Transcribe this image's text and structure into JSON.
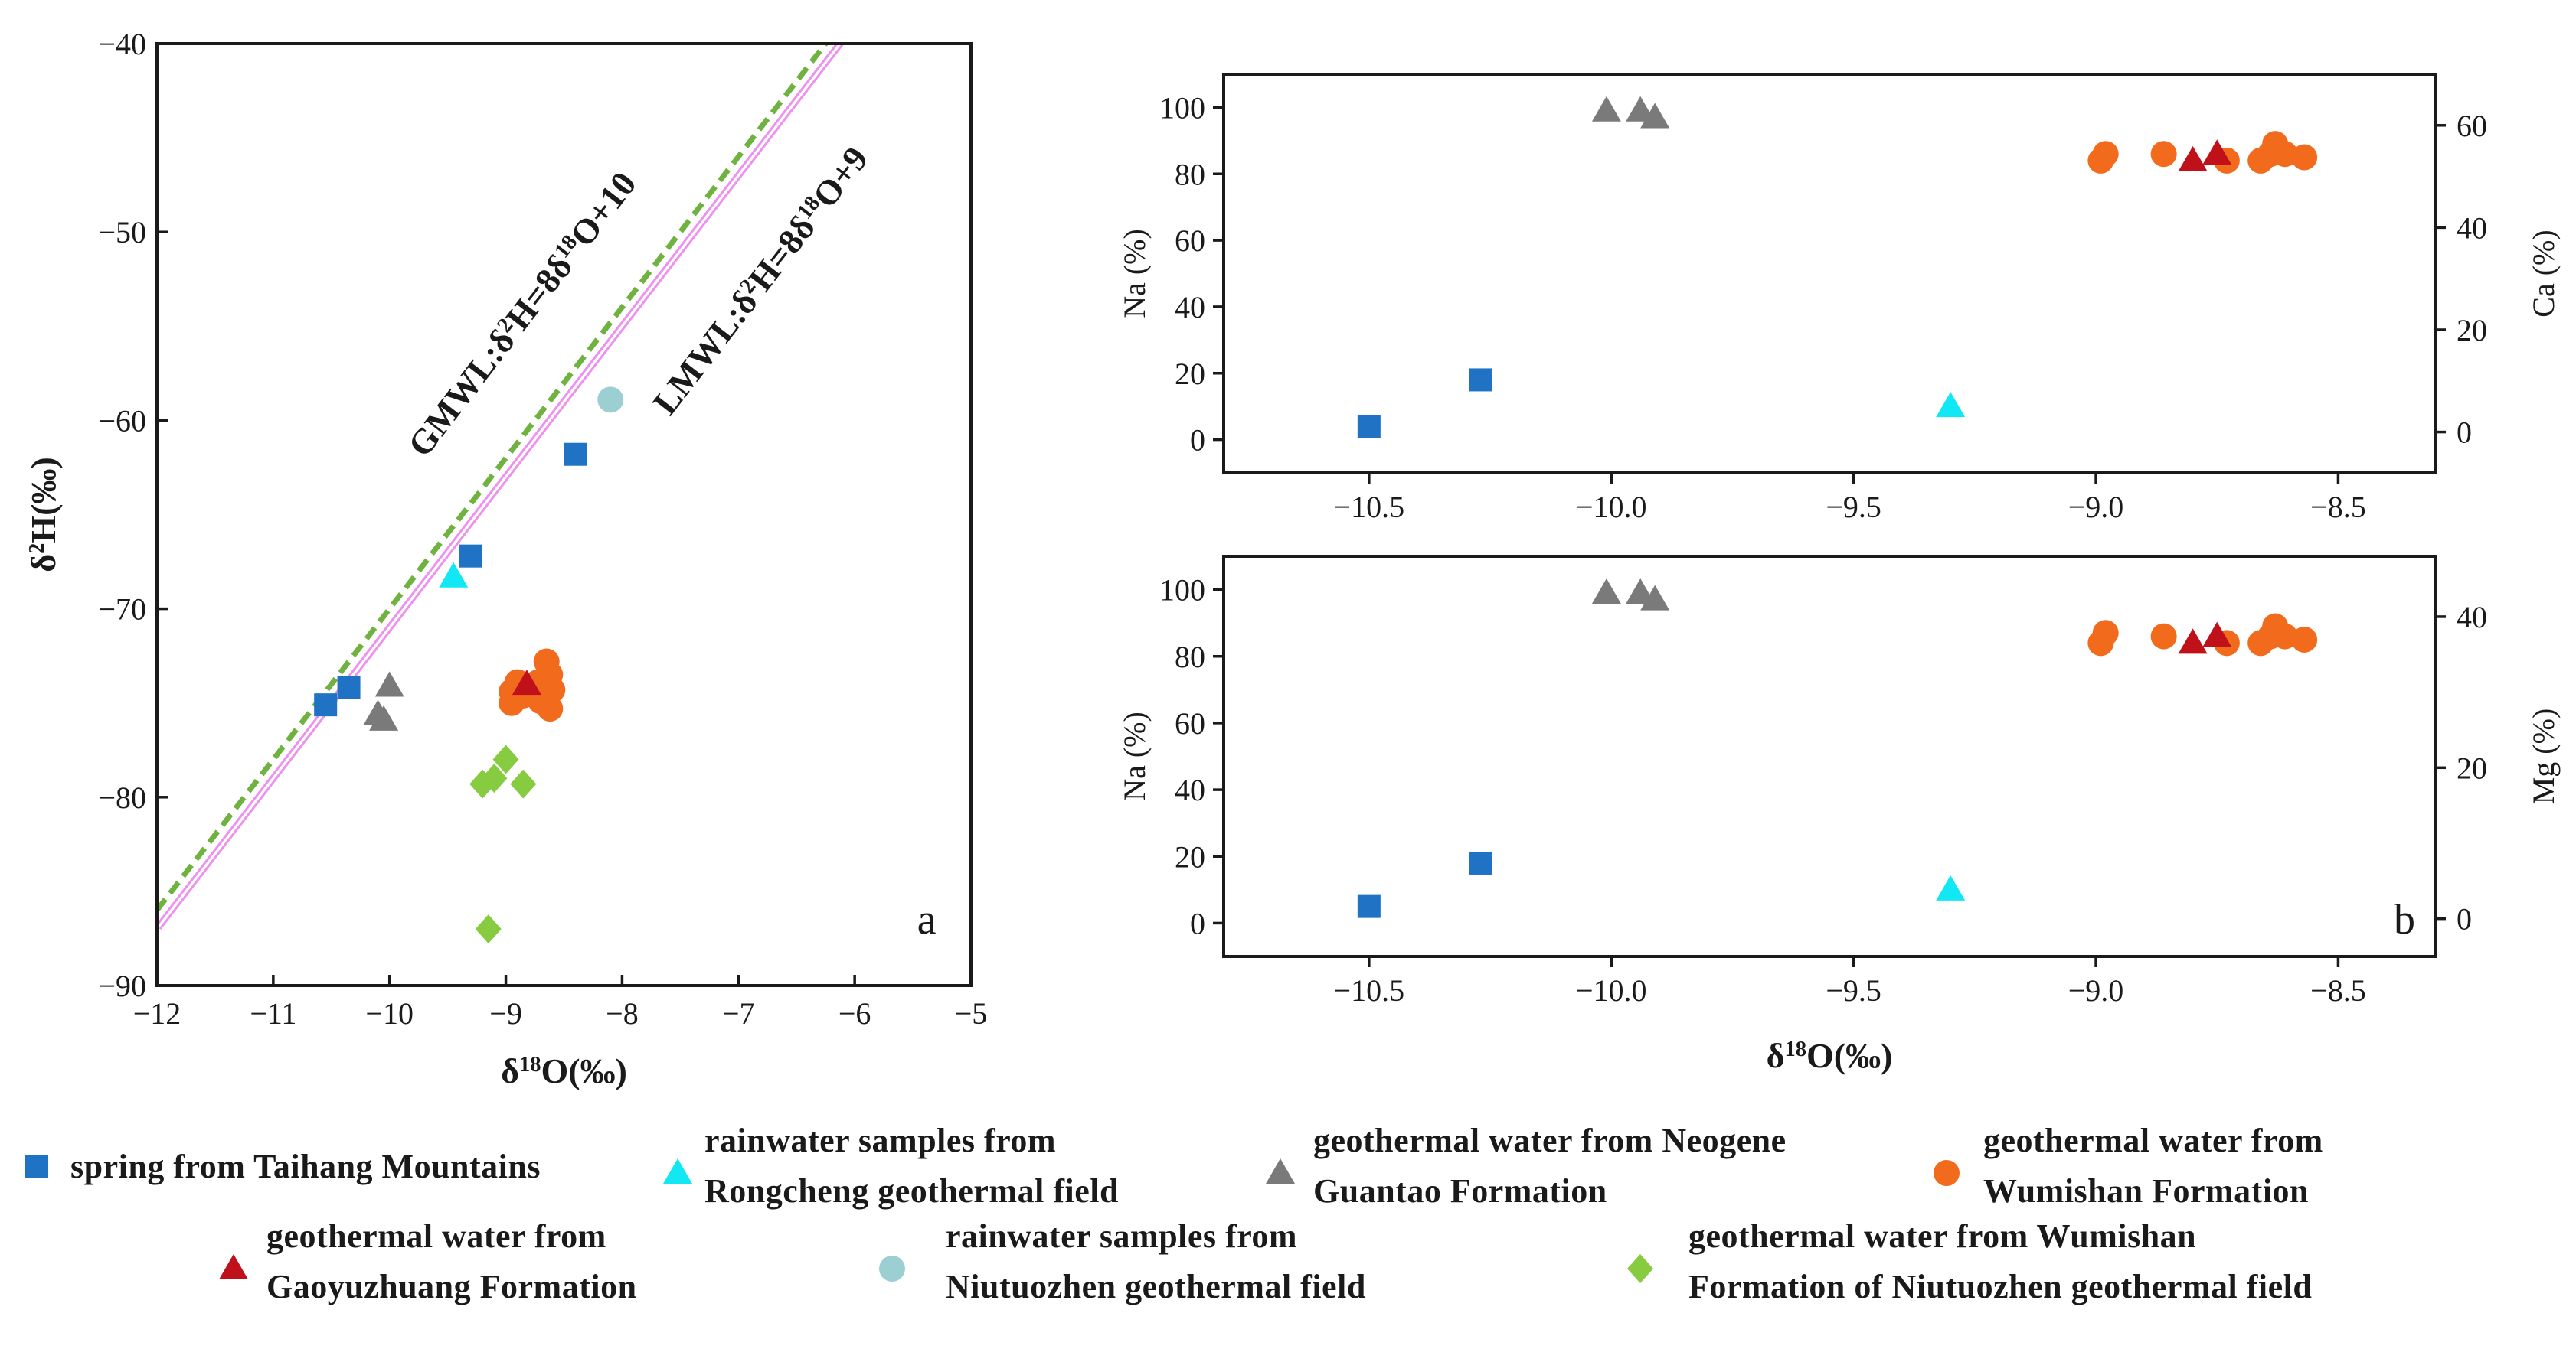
{
  "colors": {
    "spring": "#1f72c4",
    "rain_rongcheng": "#12e8f4",
    "guantao": "#7a7a7a",
    "wumishan": "#f26b1d",
    "gaoyuzhuang": "#c0111a",
    "rain_niutuozhen": "#9ccfd2",
    "niutuozhen_wumishan": "#86cb40",
    "gmwl": "#6fb23f",
    "lmwl": "#ef8ff0"
  },
  "legend": [
    {
      "key": "spring",
      "shape": "square",
      "lines": [
        "spring from Taihang Mountains"
      ]
    },
    {
      "key": "rain_rongcheng",
      "shape": "triangle",
      "lines": [
        "rainwater samples from",
        "Rongcheng geothermal field"
      ]
    },
    {
      "key": "guantao",
      "shape": "triangle",
      "lines": [
        "geothermal water from Neogene",
        "Guantao Formation"
      ]
    },
    {
      "key": "wumishan",
      "shape": "circle",
      "lines": [
        "geothermal water from",
        "Wumishan Formation"
      ]
    },
    {
      "key": "gaoyuzhuang",
      "shape": "triangle",
      "lines": [
        "geothermal water from",
        "Gaoyuzhuang Formation"
      ]
    },
    {
      "key": "rain_niutuozhen",
      "shape": "circle",
      "lines": [
        "rainwater samples from",
        "Niutuozhen geothermal field"
      ]
    },
    {
      "key": "niutuozhen_wumishan",
      "shape": "diamond",
      "lines": [
        "geothermal water from Wumishan",
        "Formation of Niutuozhen geothermal field"
      ]
    }
  ],
  "chart_data": [
    {
      "id": "a",
      "type": "scatter",
      "panel_label": "a",
      "xlabel": "δ¹⁸O(‰)",
      "ylabel": "δ²H(‰)",
      "xlim": [
        -12,
        -5
      ],
      "ylim": [
        -90,
        -40
      ],
      "xticks": [
        -12,
        -11,
        -10,
        -9,
        -8,
        -7,
        -6,
        -5
      ],
      "yticks": [
        -90,
        -80,
        -70,
        -60,
        -50,
        -40
      ],
      "lines": [
        {
          "key": "gmwl",
          "name": "GMWL",
          "label": "GMWL:δ²H=8δ¹⁸O+10",
          "slope": 8,
          "intercept": 10,
          "dash": true
        },
        {
          "key": "lmwl",
          "name": "LMWL",
          "label": "LMWL:δ²H=8δ¹⁸O+9",
          "slope": 8,
          "intercept": 9,
          "dash": false
        }
      ],
      "series": [
        {
          "key": "spring",
          "points": [
            [
              -10.55,
              -75.1
            ],
            [
              -10.35,
              -74.2
            ],
            [
              -9.3,
              -67.2
            ],
            [
              -8.4,
              -61.8
            ]
          ]
        },
        {
          "key": "rain_rongcheng",
          "points": [
            [
              -9.45,
              -68.3
            ]
          ]
        },
        {
          "key": "guantao",
          "points": [
            [
              -10.0,
              -74.1
            ],
            [
              -10.1,
              -75.6
            ],
            [
              -10.05,
              -75.9
            ]
          ]
        },
        {
          "key": "wumishan",
          "points": [
            [
              -8.95,
              -74.4
            ],
            [
              -8.9,
              -73.9
            ],
            [
              -8.85,
              -74.6
            ],
            [
              -8.75,
              -74.0
            ],
            [
              -8.7,
              -74.9
            ],
            [
              -8.65,
              -72.8
            ],
            [
              -8.62,
              -73.5
            ],
            [
              -8.6,
              -74.3
            ],
            [
              -8.95,
              -75.0
            ],
            [
              -8.62,
              -75.3
            ],
            [
              -8.72,
              -73.9
            ]
          ]
        },
        {
          "key": "gaoyuzhuang",
          "points": [
            [
              -8.82,
              -74.0
            ]
          ]
        },
        {
          "key": "rain_niutuozhen",
          "points": [
            [
              -8.1,
              -58.9
            ]
          ]
        },
        {
          "key": "niutuozhen_wumishan",
          "points": [
            [
              -9.2,
              -79.3
            ],
            [
              -9.1,
              -79.0
            ],
            [
              -9.0,
              -78.0
            ],
            [
              -8.85,
              -79.3
            ],
            [
              -9.15,
              -87.0
            ]
          ]
        }
      ]
    },
    {
      "id": "b_top",
      "type": "scatter",
      "xlim": [
        -10.8,
        -8.3
      ],
      "xticks": [
        -10.5,
        -10.0,
        -9.5,
        -9.0,
        -8.5
      ],
      "xticklabels": [
        "−10.5",
        "−10.0",
        "−9.5",
        "−9.0",
        "−8.5"
      ],
      "ylabel_left": "Na (%)",
      "ylim_left": [
        -10,
        110
      ],
      "yticks_left": [
        0,
        20,
        40,
        60,
        80,
        100
      ],
      "ylabel_right": "Ca (%)",
      "ylim_right": [
        -8,
        70
      ],
      "yticks_right": [
        0,
        20,
        40,
        60
      ],
      "series": [
        {
          "key": "spring",
          "points": [
            [
              -10.5,
              4
            ],
            [
              -10.27,
              18
            ]
          ]
        },
        {
          "key": "rain_rongcheng",
          "points": [
            [
              -9.3,
              10
            ]
          ]
        },
        {
          "key": "guantao",
          "points": [
            [
              -10.01,
              99
            ],
            [
              -9.94,
              99
            ],
            [
              -9.91,
              97
            ]
          ]
        },
        {
          "key": "wumishan",
          "points": [
            [
              -8.99,
              84
            ],
            [
              -8.98,
              86
            ],
            [
              -8.86,
              86
            ],
            [
              -8.73,
              84
            ],
            [
              -8.66,
              84
            ],
            [
              -8.64,
              86
            ],
            [
              -8.63,
              89
            ],
            [
              -8.61,
              86
            ],
            [
              -8.57,
              85
            ]
          ]
        },
        {
          "key": "gaoyuzhuang",
          "points": [
            [
              -8.8,
              84
            ],
            [
              -8.75,
              86
            ]
          ]
        }
      ]
    },
    {
      "id": "b_bottom",
      "type": "scatter",
      "panel_label": "b",
      "xlabel": "δ¹⁸O(‰)",
      "xlim": [
        -10.8,
        -8.3
      ],
      "xticks": [
        -10.5,
        -10.0,
        -9.5,
        -9.0,
        -8.5
      ],
      "xticklabels": [
        "−10.5",
        "−10.0",
        "−9.5",
        "−9.0",
        "−8.5"
      ],
      "ylabel_left": "Na (%)",
      "ylim_left": [
        -10,
        110
      ],
      "yticks_left": [
        0,
        20,
        40,
        60,
        80,
        100
      ],
      "ylabel_right": "Mg (%)",
      "ylim_right": [
        -5,
        48
      ],
      "yticks_right": [
        0,
        20,
        40
      ],
      "series": [
        {
          "key": "spring",
          "points": [
            [
              -10.5,
              5
            ],
            [
              -10.27,
              18
            ]
          ]
        },
        {
          "key": "rain_rongcheng",
          "points": [
            [
              -9.3,
              10
            ]
          ]
        },
        {
          "key": "guantao",
          "points": [
            [
              -10.01,
              99
            ],
            [
              -9.94,
              99
            ],
            [
              -9.91,
              97
            ]
          ]
        },
        {
          "key": "wumishan",
          "points": [
            [
              -8.99,
              84
            ],
            [
              -8.98,
              87
            ],
            [
              -8.86,
              86
            ],
            [
              -8.73,
              84
            ],
            [
              -8.66,
              84
            ],
            [
              -8.64,
              86
            ],
            [
              -8.63,
              89
            ],
            [
              -8.61,
              86
            ],
            [
              -8.57,
              85
            ]
          ]
        },
        {
          "key": "gaoyuzhuang",
          "points": [
            [
              -8.8,
              84
            ],
            [
              -8.75,
              86
            ]
          ]
        }
      ]
    }
  ]
}
